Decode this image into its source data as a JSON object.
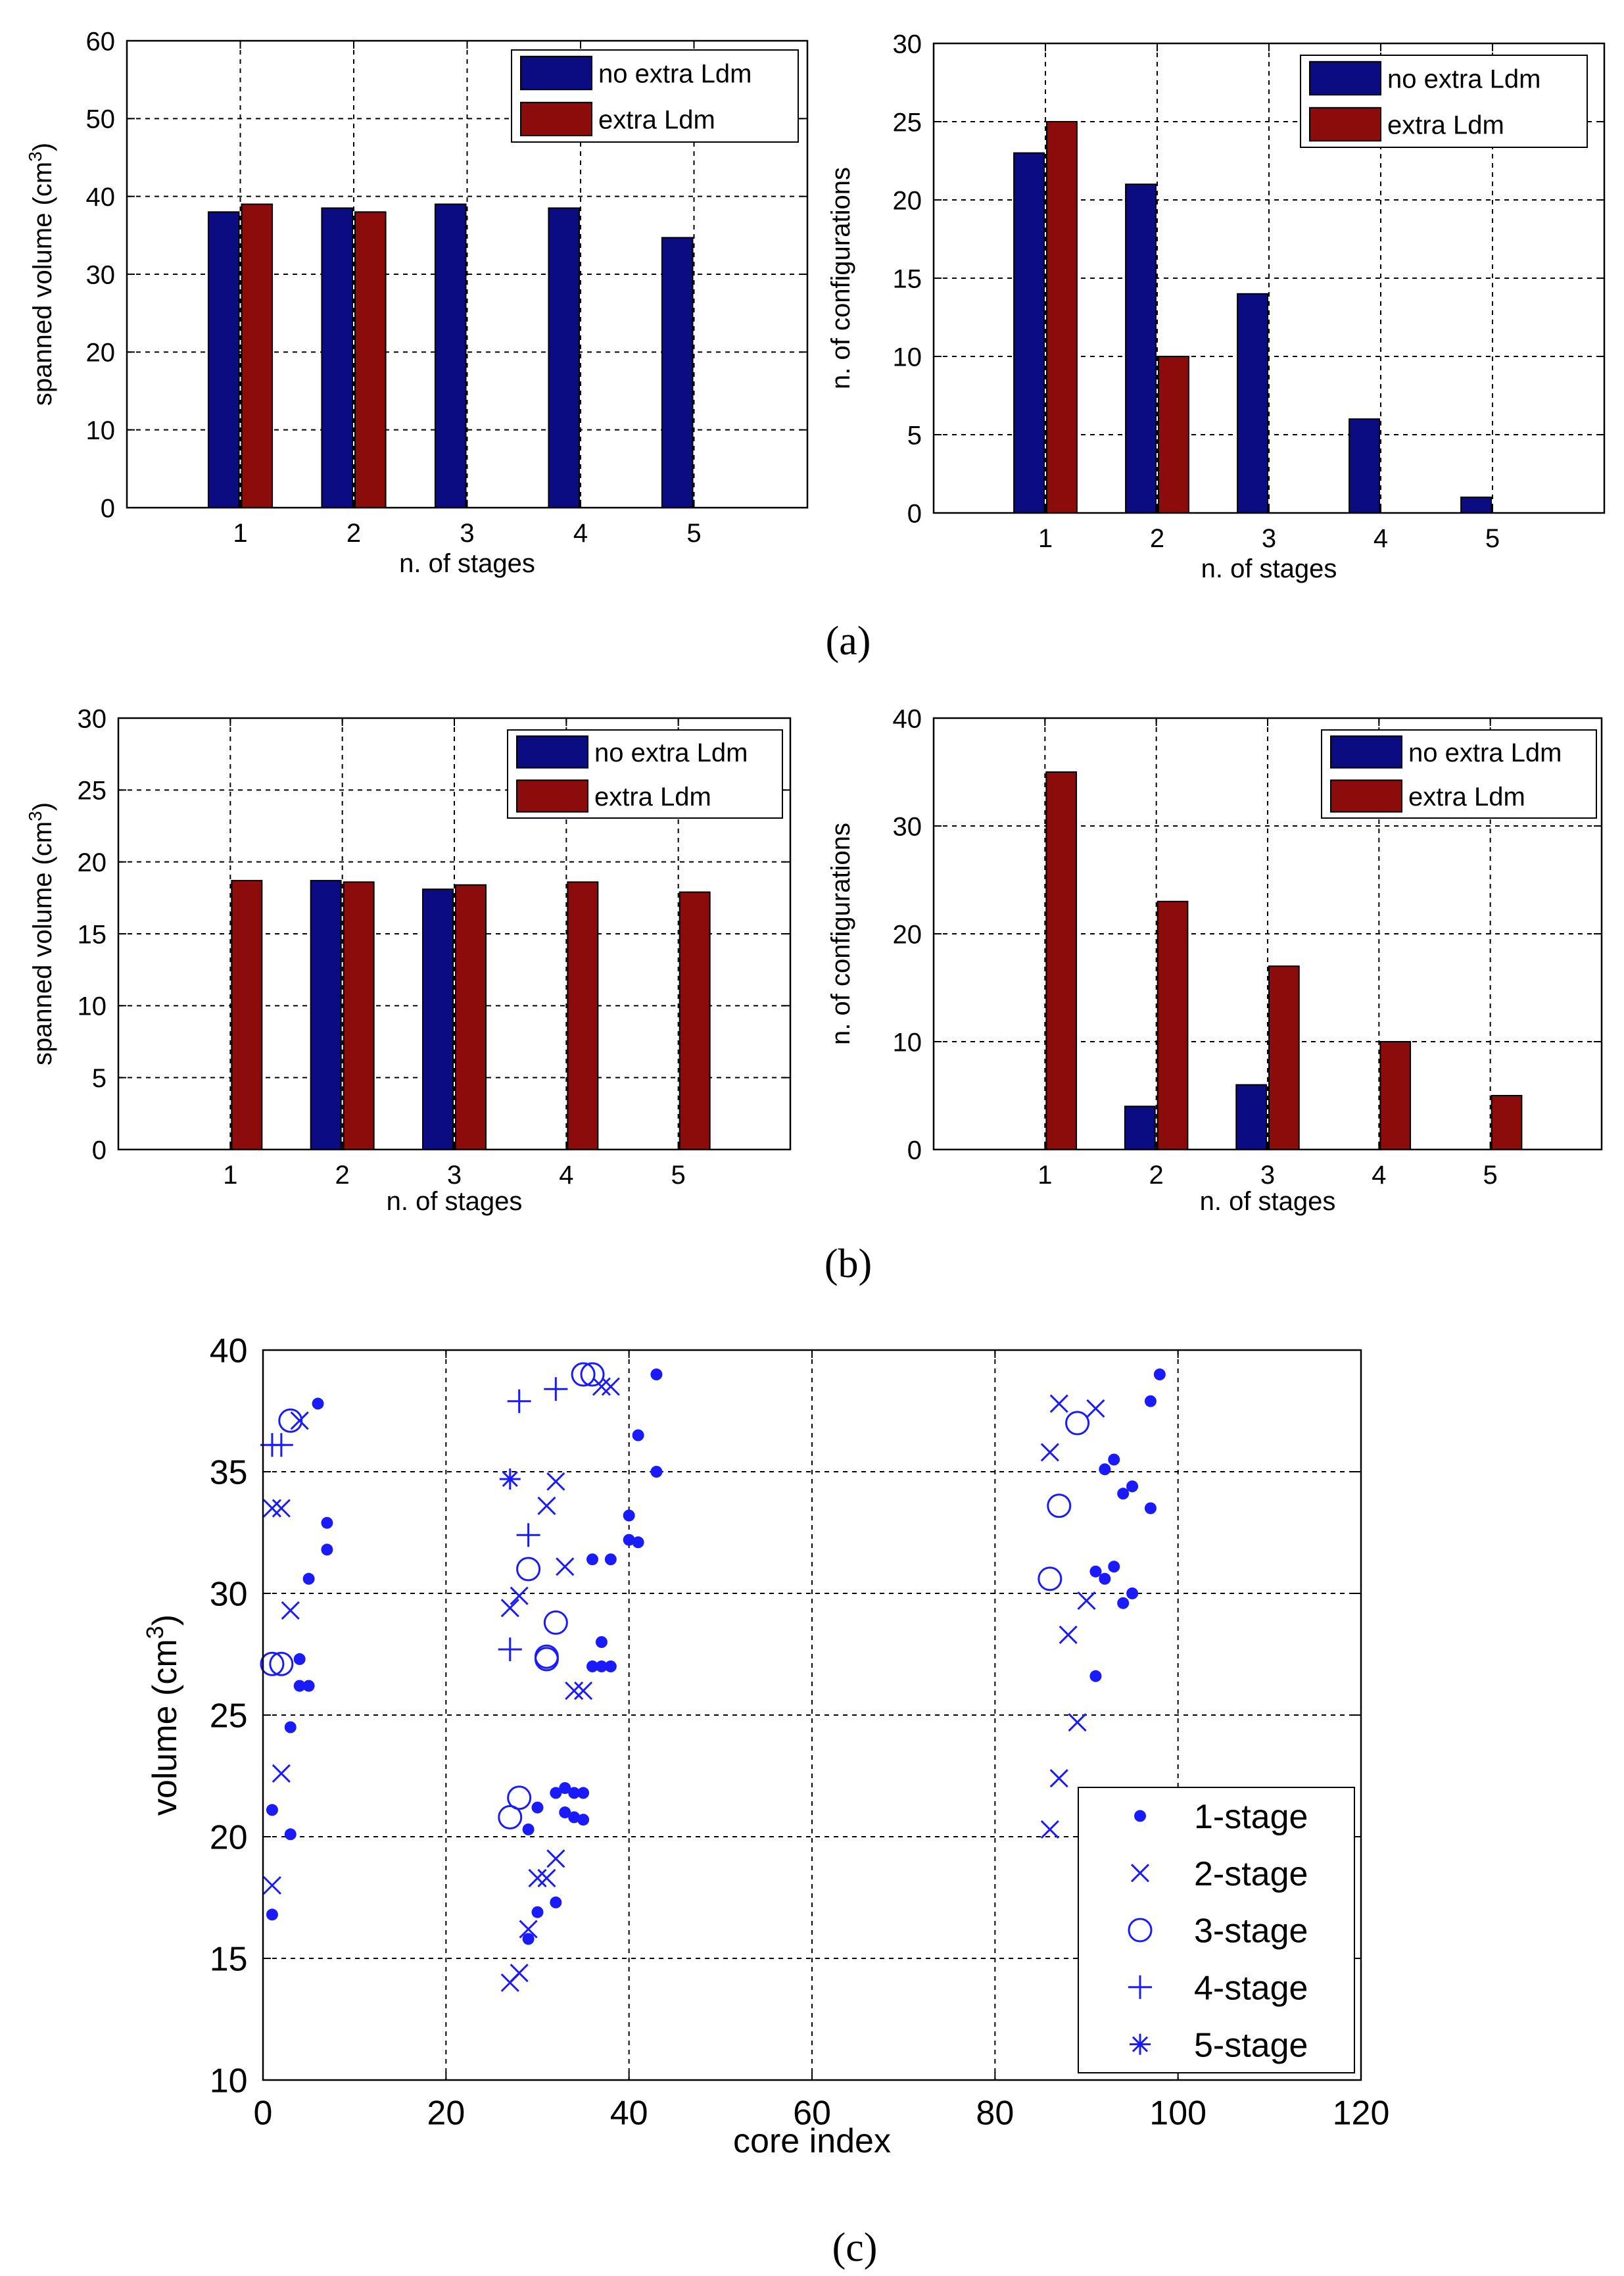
{
  "figure": {
    "labels": [
      "(a)",
      "(b)",
      "(c)"
    ]
  },
  "chart_data": [
    {
      "id": "a-left",
      "type": "bar",
      "categories": [
        "1",
        "2",
        "3",
        "4",
        "5"
      ],
      "xlabel": "n. of stages",
      "ylabel": "spanned volume (cm",
      "ylabel_sup": "3",
      "ylabel_tail": ")",
      "ylim": [
        0,
        60
      ],
      "yticks": [
        0,
        10,
        20,
        30,
        40,
        50,
        60
      ],
      "xlim": [
        0,
        6
      ],
      "grid": true,
      "legend_position": "top-right",
      "series": [
        {
          "name": "no extra Ldm",
          "color": "#0c0c82",
          "values": [
            38,
            38.5,
            39,
            38.5,
            34.7
          ]
        },
        {
          "name": "extra Ldm",
          "color": "#8c0c0c",
          "values": [
            39,
            38,
            0,
            0,
            0
          ]
        }
      ]
    },
    {
      "id": "a-right",
      "type": "bar",
      "categories": [
        "1",
        "2",
        "3",
        "4",
        "5"
      ],
      "xlabel": "n. of stages",
      "ylabel": "n. of configurations",
      "ylim": [
        0,
        30
      ],
      "yticks": [
        0,
        5,
        10,
        15,
        20,
        25,
        30
      ],
      "xlim": [
        0,
        6
      ],
      "grid": true,
      "legend_position": "top-right",
      "series": [
        {
          "name": "no extra Ldm",
          "color": "#0c0c82",
          "values": [
            23,
            21,
            14,
            6,
            1
          ]
        },
        {
          "name": "extra Ldm",
          "color": "#8c0c0c",
          "values": [
            25,
            10,
            0,
            0,
            0
          ]
        }
      ]
    },
    {
      "id": "b-left",
      "type": "bar",
      "categories": [
        "1",
        "2",
        "3",
        "4",
        "5"
      ],
      "xlabel": "n. of stages",
      "ylabel": "spanned volume (cm",
      "ylabel_sup": "3",
      "ylabel_tail": ")",
      "ylim": [
        0,
        30
      ],
      "yticks": [
        0,
        5,
        10,
        15,
        20,
        25,
        30
      ],
      "xlim": [
        0,
        6
      ],
      "grid": true,
      "legend_position": "top-right",
      "series": [
        {
          "name": "no extra Ldm",
          "color": "#0c0c82",
          "values": [
            0,
            18.7,
            18.1,
            0,
            0
          ]
        },
        {
          "name": "extra Ldm",
          "color": "#8c0c0c",
          "values": [
            18.7,
            18.6,
            18.4,
            18.6,
            17.9
          ]
        }
      ]
    },
    {
      "id": "b-right",
      "type": "bar",
      "categories": [
        "1",
        "2",
        "3",
        "4",
        "5"
      ],
      "xlabel": "n. of stages",
      "ylabel": "n. of configurations",
      "ylim": [
        0,
        40
      ],
      "yticks": [
        0,
        10,
        20,
        30,
        40
      ],
      "xlim": [
        0,
        6
      ],
      "grid": true,
      "legend_position": "top-right",
      "series": [
        {
          "name": "no extra Ldm",
          "color": "#0c0c82",
          "values": [
            0,
            4,
            6,
            0,
            0
          ]
        },
        {
          "name": "extra Ldm",
          "color": "#8c0c0c",
          "values": [
            35,
            23,
            17,
            10,
            5
          ]
        }
      ]
    },
    {
      "id": "c",
      "type": "scatter",
      "xlabel": "core index",
      "ylabel": "volume (cm",
      "ylabel_sup": "3",
      "ylabel_tail": ")",
      "xlim": [
        0,
        120
      ],
      "ylim": [
        10,
        40
      ],
      "xticks": [
        0,
        20,
        40,
        60,
        80,
        100,
        120
      ],
      "yticks": [
        10,
        15,
        20,
        25,
        30,
        35,
        40
      ],
      "grid": true,
      "legend_position": "bottom-right",
      "color": "#1a1aff",
      "series": [
        {
          "name": "1-stage",
          "marker": "dot",
          "points": [
            [
              1,
              16.8
            ],
            [
              1,
              21.1
            ],
            [
              3,
              20.1
            ],
            [
              3,
              24.5
            ],
            [
              4,
              27.3
            ],
            [
              4,
              26.2
            ],
            [
              5,
              26.2
            ],
            [
              5,
              30.6
            ],
            [
              6,
              37.8
            ],
            [
              7,
              31.8
            ],
            [
              7,
              32.9
            ],
            [
              29,
              15.8
            ],
            [
              29,
              20.3
            ],
            [
              30,
              16.9
            ],
            [
              30,
              21.2
            ],
            [
              32,
              17.3
            ],
            [
              32,
              21.8
            ],
            [
              33,
              22.0
            ],
            [
              33,
              21.0
            ],
            [
              34,
              21.8
            ],
            [
              34,
              20.8
            ],
            [
              35,
              21.8
            ],
            [
              35,
              20.7
            ],
            [
              36,
              31.4
            ],
            [
              36,
              27.0
            ],
            [
              37,
              27.0
            ],
            [
              37,
              28.0
            ],
            [
              38,
              31.4
            ],
            [
              38,
              27.0
            ],
            [
              40,
              33.2
            ],
            [
              40,
              32.2
            ],
            [
              41,
              32.1
            ],
            [
              41,
              36.5
            ],
            [
              43,
              39.0
            ],
            [
              43,
              35.0
            ],
            [
              91,
              26.6
            ],
            [
              91,
              30.9
            ],
            [
              92,
              30.6
            ],
            [
              92,
              35.1
            ],
            [
              93,
              35.5
            ],
            [
              93,
              31.1
            ],
            [
              94,
              34.1
            ],
            [
              94,
              29.6
            ],
            [
              95,
              34.4
            ],
            [
              95,
              30.0
            ],
            [
              97,
              33.5
            ],
            [
              97,
              37.9
            ],
            [
              98,
              39.0
            ]
          ]
        },
        {
          "name": "2-stage",
          "marker": "x",
          "points": [
            [
              1,
              18.0
            ],
            [
              1,
              33.5
            ],
            [
              2,
              22.6
            ],
            [
              2,
              33.5
            ],
            [
              3,
              29.3
            ],
            [
              4,
              37.1
            ],
            [
              27,
              14.0
            ],
            [
              27,
              29.4
            ],
            [
              28,
              14.4
            ],
            [
              28,
              29.9
            ],
            [
              29,
              16.2
            ],
            [
              30,
              18.3
            ],
            [
              31,
              18.3
            ],
            [
              31,
              33.6
            ],
            [
              32,
              19.1
            ],
            [
              32,
              34.6
            ],
            [
              33,
              31.1
            ],
            [
              34,
              26.0
            ],
            [
              35,
              26.0
            ],
            [
              37,
              38.5
            ],
            [
              38,
              38.5
            ],
            [
              86,
              20.3
            ],
            [
              86,
              35.8
            ],
            [
              87,
              22.4
            ],
            [
              87,
              37.8
            ],
            [
              88,
              28.3
            ],
            [
              89,
              24.7
            ],
            [
              90,
              29.7
            ],
            [
              91,
              37.6
            ]
          ]
        },
        {
          "name": "3-stage",
          "marker": "o",
          "points": [
            [
              1,
              27.1
            ],
            [
              2,
              27.1
            ],
            [
              3,
              37.1
            ],
            [
              27,
              20.8
            ],
            [
              28,
              21.6
            ],
            [
              29,
              31.0
            ],
            [
              31,
              27.3
            ],
            [
              31,
              27.4
            ],
            [
              32,
              28.8
            ],
            [
              35,
              39.0
            ],
            [
              36,
              39.0
            ],
            [
              86,
              30.6
            ],
            [
              87,
              33.6
            ],
            [
              89,
              37.0
            ]
          ]
        },
        {
          "name": "4-stage",
          "marker": "plus",
          "points": [
            [
              1,
              36.1
            ],
            [
              2,
              36.1
            ],
            [
              27,
              27.7
            ],
            [
              28,
              37.9
            ],
            [
              29,
              32.4
            ],
            [
              32,
              38.4
            ]
          ]
        },
        {
          "name": "5-stage",
          "marker": "star",
          "points": [
            [
              27,
              34.7
            ]
          ]
        }
      ]
    }
  ]
}
